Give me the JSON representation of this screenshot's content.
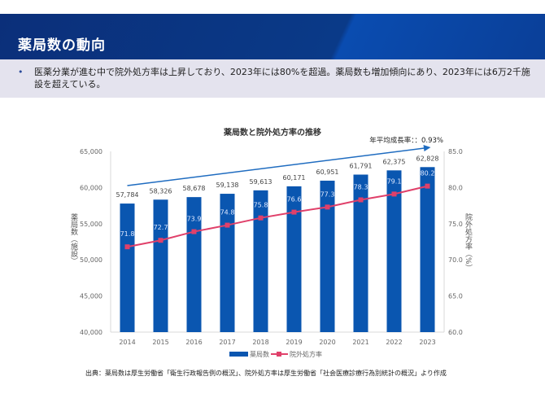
{
  "header": {
    "title": "薬局数の動向"
  },
  "bullets": [
    {
      "marker": "•",
      "text": "医薬分業が進む中で院外処方率は上昇しており、2023年には80%を超過。薬局数も増加傾向にあり、2023年には6万2千施設を超えている。"
    }
  ],
  "source": "出典：薬局数は厚生労働省「衛生行政報告例の概況」、院外処方率は厚生労働省「社会医療診療行為別統計の概況」より作成",
  "chart_data": {
    "type": "bar+line",
    "title": "薬局数と院外処方率の推移",
    "annotation": "年平均成長率：：0.93%",
    "categories": [
      "2014",
      "2015",
      "2016",
      "2017",
      "2018",
      "2019",
      "2020",
      "2021",
      "2022",
      "2023"
    ],
    "series": [
      {
        "name": "薬局数",
        "type": "bar",
        "axis": "left",
        "color": "#0a56b0",
        "values": [
          57784,
          58326,
          58678,
          59138,
          59613,
          60171,
          60951,
          61791,
          62375,
          62828
        ],
        "labels": [
          "57,784",
          "58,326",
          "58,678",
          "59,138",
          "59,613",
          "60,171",
          "60,951",
          "61,791",
          "62,375",
          "62,828"
        ]
      },
      {
        "name": "院外処方率",
        "type": "line",
        "axis": "right",
        "color": "#e0406a",
        "values": [
          71.8,
          72.7,
          73.9,
          74.8,
          75.8,
          76.6,
          77.3,
          78.3,
          79.1,
          80.2
        ],
        "labels": [
          "71.8",
          "72.7",
          "73.9",
          "74.8",
          "75.8",
          "76.6",
          "77.3",
          "78.3",
          "79.1",
          "80.2"
        ]
      }
    ],
    "ylabel": "薬局数（施設）",
    "y2label": "院外処方率（%）",
    "ylim": [
      40000,
      65000
    ],
    "y2lim": [
      60,
      85
    ],
    "yticks": [
      "40,000",
      "45,000",
      "50,000",
      "55,000",
      "60,000",
      "65,000"
    ],
    "y2ticks": [
      "60.0",
      "65.0",
      "70.0",
      "75.0",
      "80.0",
      "85.0"
    ],
    "trend_arrow_color": "#1f6cc0",
    "legend": "bottom",
    "grid": false
  }
}
